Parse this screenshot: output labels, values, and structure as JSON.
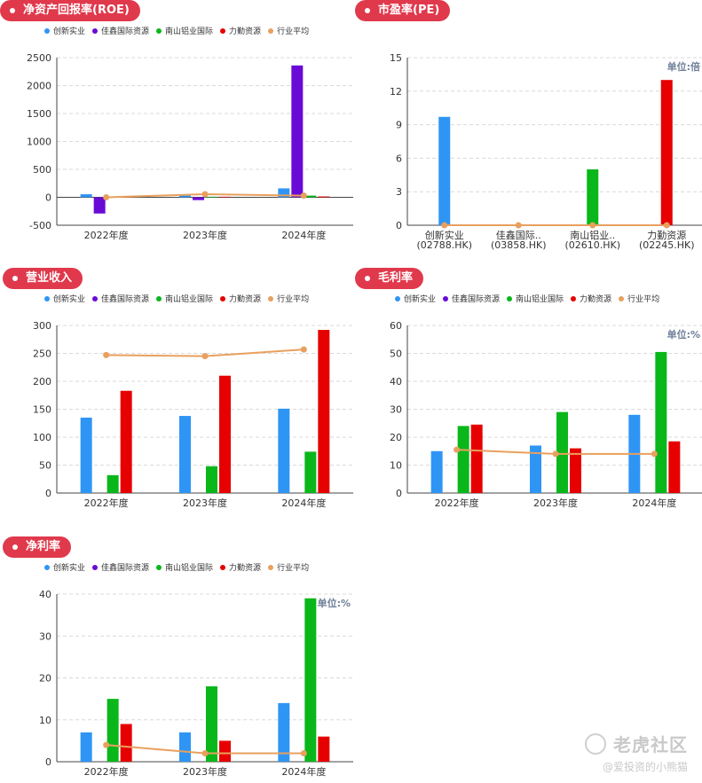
{
  "colors": {
    "chuangxin": "#2f95f5",
    "jiaxin": "#6a0ad6",
    "nanshan": "#09b71b",
    "liqin": "#e60000",
    "avg": "#e8a05e",
    "pill": "#e0394c"
  },
  "legend": [
    "创新实业",
    "佳鑫国际资源",
    "南山铝业国际",
    "力勤资源",
    "行业平均"
  ],
  "watermark": {
    "logo": "老虎社区",
    "user": "@爱投资的小熊猫"
  },
  "chart_data": [
    {
      "id": "roe",
      "type": "bar",
      "title": "净资产回报率(ROE)",
      "unit": "",
      "categories": [
        "2022年度",
        "2023年度",
        "2024年度"
      ],
      "ylim": [
        -500,
        2500
      ],
      "yticks": [
        -500,
        0,
        500,
        1000,
        1500,
        2000,
        2500
      ],
      "series": [
        {
          "name": "创新实业",
          "values": [
            55,
            30,
            160
          ]
        },
        {
          "name": "佳鑫国际资源",
          "values": [
            -290,
            -50,
            2360
          ]
        },
        {
          "name": "南山铝业国际",
          "values": [
            5,
            10,
            30
          ]
        },
        {
          "name": "力勤资源",
          "values": [
            5,
            10,
            15
          ]
        }
      ],
      "line": {
        "name": "行业平均",
        "values": [
          0,
          55,
          30
        ]
      },
      "grid": true,
      "legend_position": "top-left"
    },
    {
      "id": "pe",
      "type": "bar",
      "title": "市盈率(PE)",
      "unit": "单位:倍",
      "categories": [
        "创新实业\n(02788.HK)",
        "佳鑫国际..\n(03858.HK)",
        "南山铝业..\n(02610.HK)",
        "力勤资源\n(02245.HK)"
      ],
      "ylim": [
        0,
        15
      ],
      "yticks": [
        0,
        3,
        6,
        9,
        12,
        15
      ],
      "values": [
        9.7,
        0,
        5.0,
        13.0
      ],
      "line": {
        "name": "行业平均",
        "values": [
          0,
          0,
          0,
          0
        ]
      },
      "grid": true
    },
    {
      "id": "revenue",
      "type": "bar",
      "title": "营业收入",
      "unit": "",
      "categories": [
        "2022年度",
        "2023年度",
        "2024年度"
      ],
      "ylim": [
        0,
        300
      ],
      "yticks": [
        0,
        50,
        100,
        150,
        200,
        250,
        300
      ],
      "series": [
        {
          "name": "创新实业",
          "values": [
            135,
            138,
            151
          ]
        },
        {
          "name": "佳鑫国际资源",
          "values": [
            0,
            0,
            0
          ]
        },
        {
          "name": "南山铝业国际",
          "values": [
            32,
            48,
            74
          ]
        },
        {
          "name": "力勤资源",
          "values": [
            183,
            210,
            292
          ]
        }
      ],
      "line": {
        "name": "行业平均",
        "values": [
          247,
          245,
          257
        ]
      },
      "grid": true,
      "legend_position": "top-left"
    },
    {
      "id": "gross",
      "type": "bar",
      "title": "毛利率",
      "unit": "单位:%",
      "categories": [
        "2022年度",
        "2023年度",
        "2024年度"
      ],
      "ylim": [
        0,
        60
      ],
      "yticks": [
        0,
        10,
        20,
        30,
        40,
        50,
        60
      ],
      "series": [
        {
          "name": "创新实业",
          "values": [
            15,
            17,
            28
          ]
        },
        {
          "name": "佳鑫国际资源",
          "values": [
            0,
            0,
            0
          ]
        },
        {
          "name": "南山铝业国际",
          "values": [
            24,
            29,
            50.5
          ]
        },
        {
          "name": "力勤资源",
          "values": [
            24.5,
            16,
            18.5
          ]
        }
      ],
      "line": {
        "name": "行业平均",
        "values": [
          15.5,
          14,
          14
        ]
      },
      "grid": true,
      "legend_position": "top-left"
    },
    {
      "id": "net",
      "type": "bar",
      "title": "净利率",
      "unit": "单位:%",
      "categories": [
        "2022年度",
        "2023年度",
        "2024年度"
      ],
      "ylim": [
        0,
        40
      ],
      "yticks": [
        0,
        10,
        20,
        30,
        40
      ],
      "series": [
        {
          "name": "创新实业",
          "values": [
            7,
            7,
            14
          ]
        },
        {
          "name": "佳鑫国际资源",
          "values": [
            0,
            0,
            0
          ]
        },
        {
          "name": "南山铝业国际",
          "values": [
            15,
            18,
            39
          ]
        },
        {
          "name": "力勤资源",
          "values": [
            9,
            5,
            6
          ]
        }
      ],
      "line": {
        "name": "行业平均",
        "values": [
          4,
          2,
          2
        ]
      },
      "grid": true,
      "legend_position": "top-left"
    }
  ]
}
